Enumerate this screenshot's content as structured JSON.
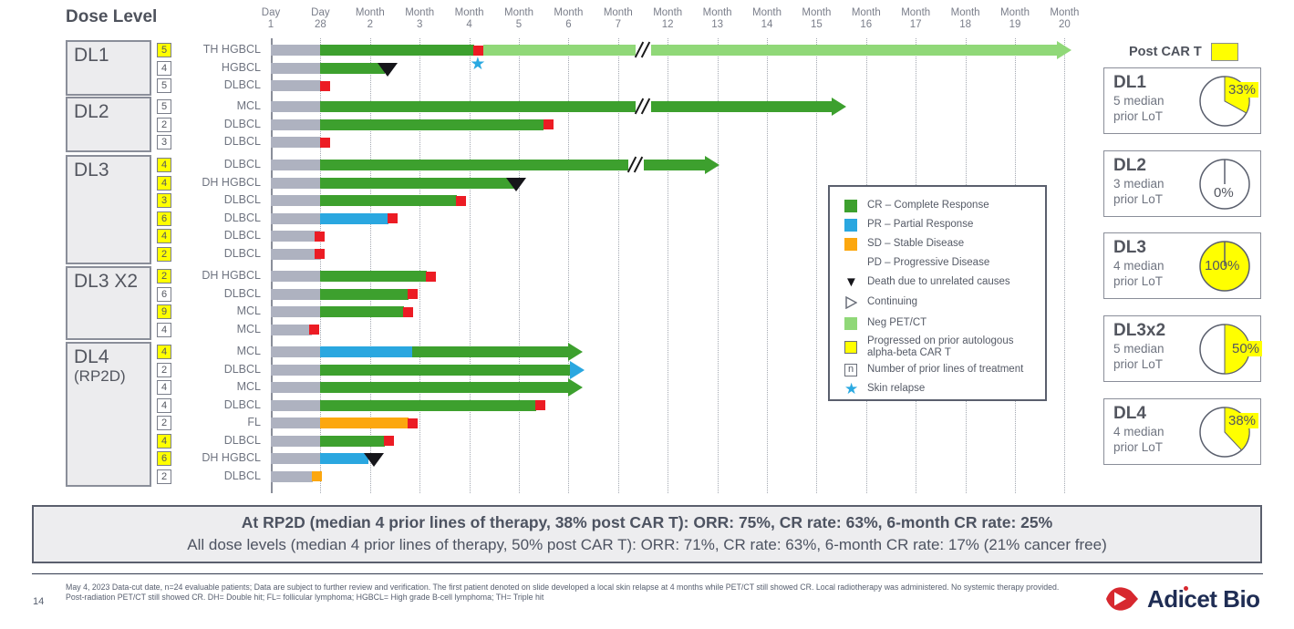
{
  "slide": {
    "title": "Dose Level",
    "page_number": "14",
    "post_cart_label": "Post CAR T",
    "logo_text": "Adicet Bio",
    "summary": {
      "line1": "At RP2D (median 4 prior lines of therapy, 38% post CAR T): ORR: 75%, CR rate: 63%, 6-month CR rate: 25%",
      "line2": "All dose levels (median 4 prior lines of therapy, 50% post CAR T):  ORR: 71%, CR rate: 63%, 6-month CR rate: 17% (21% cancer free)"
    },
    "footnote": "May 4, 2023 Data-cut date, n=24 evaluable patients; Data are subject to further review and verification.  The first patient denoted on slide developed a local skin relapse at 4 months while PET/CT still showed CR. Local radiotherapy was administered. No systemic therapy provided. Post-radiation PET/CT still showed CR. DH= Double hit; FL= follicular lymphoma; HGBCL= High grade B-cell lymphoma; TH= Triple hit"
  },
  "colors": {
    "cr": "#3da02e",
    "pr": "#2aa7e0",
    "sd": "#fca70f",
    "pd": "#ec1c24",
    "negpet": "#90d878",
    "lead_in": "#aeb2c0",
    "post_cart": "#ffff00",
    "death": "#15151a",
    "star": "#2aa9e1",
    "logo_red": "#d7282f",
    "logo_navy": "#1f2d54"
  },
  "legend": {
    "items": [
      {
        "key": "cr",
        "label": "CR – Complete Response"
      },
      {
        "key": "pr",
        "label": "PR –  Partial Response"
      },
      {
        "key": "sd",
        "label": "SD – Stable Disease"
      },
      {
        "key": "pd",
        "label": "PD – Progressive Disease"
      },
      {
        "key": "death",
        "label": "Death due to unrelated causes"
      },
      {
        "key": "continuing",
        "label": "Continuing"
      },
      {
        "key": "negpet",
        "label": "Neg PET/CT"
      },
      {
        "key": "postcart",
        "label": "Progressed on prior autologous alpha-beta CAR T"
      },
      {
        "key": "n",
        "label": "Number of prior lines of treatment"
      },
      {
        "key": "star",
        "label": "Skin relapse"
      }
    ]
  },
  "cards": [
    {
      "title": "DL1",
      "line1": "5 median",
      "line2": "prior LoT",
      "pct": 33,
      "pct_label": "33%"
    },
    {
      "title": "DL2",
      "line1": "3 median",
      "line2": "prior LoT",
      "pct": 0,
      "pct_label": "0%"
    },
    {
      "title": "DL3",
      "line1": "4 median",
      "line2": "prior LoT",
      "pct": 100,
      "pct_label": "100%"
    },
    {
      "title": "DL3x2",
      "line1": "5 median",
      "line2": "prior LoT",
      "pct": 50,
      "pct_label": "50%"
    },
    {
      "title": "DL4",
      "line1": "4 median",
      "line2": "prior LoT",
      "pct": 38,
      "pct_label": "38%"
    }
  ],
  "chart_data": {
    "type": "swimmer",
    "x_axis_note": "slot units: 0=Day 1, 1=Day 28, 2..7=Month 2..7, 8..16=Month 12..20; axis break between Month 7 and Month 12",
    "axis_ticks": [
      [
        "Day",
        "1"
      ],
      [
        "Day",
        "28"
      ],
      [
        "Month",
        "2"
      ],
      [
        "Month",
        "3"
      ],
      [
        "Month",
        "4"
      ],
      [
        "Month",
        "5"
      ],
      [
        "Month",
        "6"
      ],
      [
        "Month",
        "7"
      ],
      [
        "Month",
        "12"
      ],
      [
        "Month",
        "13"
      ],
      [
        "Month",
        "14"
      ],
      [
        "Month",
        "15"
      ],
      [
        "Month",
        "16"
      ],
      [
        "Month",
        "17"
      ],
      [
        "Month",
        "18"
      ],
      [
        "Month",
        "19"
      ],
      [
        "Month",
        "20"
      ]
    ],
    "groups": [
      {
        "label": "DL1",
        "sub": "",
        "rows": [
          {
            "badge": "5",
            "badge_yellow": true,
            "disease": "TH HGBCL",
            "segments": [
              [
                "lead",
                0,
                1
              ],
              [
                "cr",
                1,
                4.1
              ],
              [
                "negpet",
                4.28,
                15.85,
                "negpet"
              ]
            ],
            "markers": [
              [
                "pd",
                4.18
              ],
              [
                "star",
                4.18
              ],
              [
                "break",
                7.5
              ]
            ]
          },
          {
            "badge": "4",
            "badge_yellow": false,
            "disease": "HGBCL",
            "segments": [
              [
                "lead",
                0,
                1
              ],
              [
                "cr",
                1,
                2.3
              ]
            ],
            "markers": [
              [
                "death",
                2.35
              ]
            ]
          },
          {
            "badge": "5",
            "badge_yellow": false,
            "disease": "DLBCL",
            "segments": [
              [
                "lead",
                0,
                1
              ]
            ],
            "markers": [
              [
                "pd",
                1.1
              ]
            ]
          }
        ]
      },
      {
        "label": "DL2",
        "sub": "",
        "rows": [
          {
            "badge": "5",
            "badge_yellow": false,
            "disease": "MCL",
            "segments": [
              [
                "lead",
                0,
                1
              ],
              [
                "cr",
                1,
                11.3,
                "cr"
              ]
            ],
            "markers": [
              [
                "break",
                7.5
              ]
            ]
          },
          {
            "badge": "2",
            "badge_yellow": false,
            "disease": "DLBCL",
            "segments": [
              [
                "lead",
                0,
                1
              ],
              [
                "cr",
                1,
                5.5
              ]
            ],
            "markers": [
              [
                "pd",
                5.6
              ]
            ]
          },
          {
            "badge": "3",
            "badge_yellow": false,
            "disease": "DLBCL",
            "segments": [
              [
                "lead",
                0,
                1
              ]
            ],
            "markers": [
              [
                "pd",
                1.1
              ]
            ]
          }
        ]
      },
      {
        "label": "DL3",
        "sub": "",
        "rows": [
          {
            "badge": "4",
            "badge_yellow": true,
            "disease": "DLBCL",
            "segments": [
              [
                "lead",
                0,
                1
              ],
              [
                "cr",
                1,
                8.75,
                "cr"
              ]
            ],
            "markers": [
              [
                "break",
                7.35
              ]
            ]
          },
          {
            "badge": "4",
            "badge_yellow": true,
            "disease": "DH HGBCL",
            "segments": [
              [
                "lead",
                0,
                1
              ],
              [
                "cr",
                1,
                4.9
              ]
            ],
            "markers": [
              [
                "death",
                4.95
              ]
            ]
          },
          {
            "badge": "3",
            "badge_yellow": true,
            "disease": "DLBCL",
            "segments": [
              [
                "lead",
                0,
                1
              ],
              [
                "cr",
                1,
                3.75
              ]
            ],
            "markers": [
              [
                "pd",
                3.83
              ]
            ]
          },
          {
            "badge": "6",
            "badge_yellow": true,
            "disease": "DLBCL",
            "segments": [
              [
                "lead",
                0,
                1
              ],
              [
                "pr",
                1,
                2.38
              ]
            ],
            "markers": [
              [
                "pd",
                2.46
              ]
            ]
          },
          {
            "badge": "4",
            "badge_yellow": true,
            "disease": "DLBCL",
            "segments": [
              [
                "lead",
                0,
                1
              ]
            ],
            "markers": [
              [
                "pd",
                0.98
              ]
            ]
          },
          {
            "badge": "2",
            "badge_yellow": true,
            "disease": "DLBCL",
            "segments": [
              [
                "lead",
                0,
                1
              ]
            ],
            "markers": [
              [
                "pd",
                0.98
              ]
            ]
          }
        ]
      },
      {
        "label": "DL3 X2",
        "sub": "",
        "rows": [
          {
            "badge": "2",
            "badge_yellow": true,
            "disease": "DH HGBCL",
            "segments": [
              [
                "lead",
                0,
                1
              ],
              [
                "cr",
                1,
                3.15
              ]
            ],
            "markers": [
              [
                "pd",
                3.23
              ]
            ]
          },
          {
            "badge": "6",
            "badge_yellow": false,
            "disease": "DLBCL",
            "segments": [
              [
                "lead",
                0,
                1
              ],
              [
                "cr",
                1,
                2.78
              ]
            ],
            "markers": [
              [
                "pd",
                2.86
              ]
            ]
          },
          {
            "badge": "9",
            "badge_yellow": true,
            "disease": "MCL",
            "segments": [
              [
                "lead",
                0,
                1
              ],
              [
                "cr",
                1,
                2.68
              ]
            ],
            "markers": [
              [
                "pd",
                2.76
              ]
            ]
          },
          {
            "badge": "4",
            "badge_yellow": false,
            "disease": "MCL",
            "segments": [
              [
                "lead",
                0,
                0.82
              ]
            ],
            "markers": [
              [
                "pd",
                0.88
              ]
            ]
          }
        ]
      },
      {
        "label": "DL4",
        "sub": "(RP2D)",
        "rows": [
          {
            "badge": "4",
            "badge_yellow": true,
            "disease": "MCL",
            "segments": [
              [
                "lead",
                0,
                1
              ],
              [
                "pr",
                1,
                2.85
              ],
              [
                "cr",
                2.85,
                6.0,
                "cr"
              ]
            ],
            "markers": []
          },
          {
            "badge": "2",
            "badge_yellow": false,
            "disease": "DLBCL",
            "segments": [
              [
                "lead",
                0,
                1
              ],
              [
                "cr",
                1,
                6.03,
                "pr"
              ]
            ],
            "markers": []
          },
          {
            "badge": "4",
            "badge_yellow": false,
            "disease": "MCL",
            "segments": [
              [
                "lead",
                0,
                1
              ],
              [
                "cr",
                1,
                6.0,
                "cr"
              ]
            ],
            "markers": []
          },
          {
            "badge": "4",
            "badge_yellow": false,
            "disease": "DLBCL",
            "segments": [
              [
                "lead",
                0,
                1
              ],
              [
                "cr",
                1,
                5.35
              ]
            ],
            "markers": [
              [
                "pd",
                5.43
              ]
            ]
          },
          {
            "badge": "2",
            "badge_yellow": false,
            "disease": "FL",
            "segments": [
              [
                "lead",
                0,
                1
              ],
              [
                "sd",
                1,
                2.78
              ]
            ],
            "markers": [
              [
                "pd",
                2.86
              ]
            ]
          },
          {
            "badge": "4",
            "badge_yellow": true,
            "disease": "DLBCL",
            "segments": [
              [
                "lead",
                0,
                1
              ],
              [
                "cr",
                1,
                2.3
              ]
            ],
            "markers": [
              [
                "pd",
                2.38
              ]
            ]
          },
          {
            "badge": "6",
            "badge_yellow": true,
            "disease": "DH HGBCL",
            "segments": [
              [
                "lead",
                0,
                1
              ],
              [
                "pr",
                1,
                1.97
              ]
            ],
            "markers": [
              [
                "death",
                2.08
              ]
            ]
          },
          {
            "badge": "2",
            "badge_yellow": false,
            "disease": "DLBCL",
            "segments": [
              [
                "lead",
                0,
                0.85
              ]
            ],
            "markers": [
              [
                "sd",
                0.92
              ]
            ]
          }
        ]
      }
    ]
  }
}
